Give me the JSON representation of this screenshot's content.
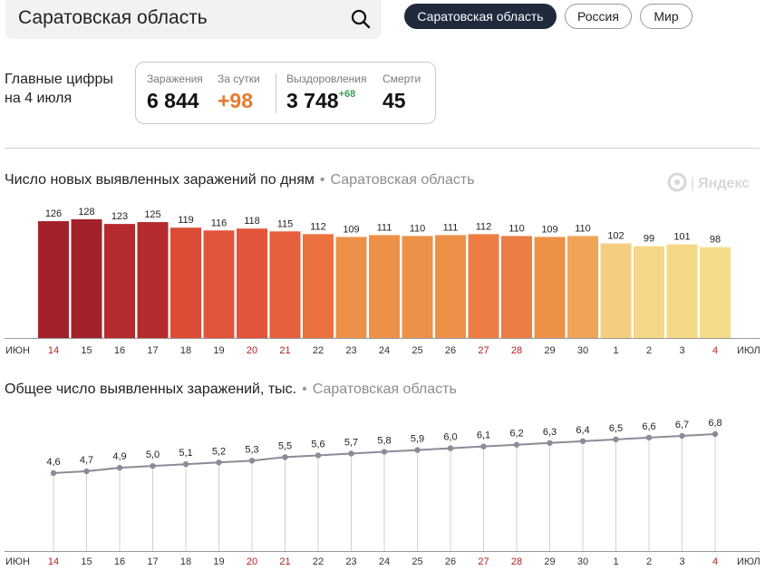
{
  "search": {
    "value": "Саратовская область"
  },
  "region_tabs": [
    {
      "label": "Саратовская область",
      "active": true
    },
    {
      "label": "Россия",
      "active": false
    },
    {
      "label": "Мир",
      "active": false
    }
  ],
  "summary": {
    "title": "Главные цифры на 4 июля",
    "infections_label": "Заражения",
    "infections_value": "6 844",
    "daily_label": "За сутки",
    "daily_value": "+98",
    "recovered_label": "Выздоровления",
    "recovered_value": "3 748",
    "recovered_delta": "+68",
    "deaths_label": "Смерти",
    "deaths_value": "45"
  },
  "watermark": {
    "text": "Яндекс"
  },
  "chart_data": [
    {
      "type": "bar",
      "title": "Число новых выявленных заражений по дням",
      "region": "Саратовская область",
      "categories": [
        "14",
        "15",
        "16",
        "17",
        "18",
        "19",
        "20",
        "21",
        "22",
        "23",
        "24",
        "25",
        "26",
        "27",
        "28",
        "29",
        "30",
        "1",
        "2",
        "3",
        "4"
      ],
      "values": [
        126,
        128,
        123,
        125,
        119,
        116,
        118,
        115,
        112,
        109,
        111,
        110,
        111,
        112,
        110,
        109,
        110,
        102,
        99,
        101,
        98
      ],
      "weekend_categories": [
        "14",
        "20",
        "21",
        "27",
        "28",
        "4"
      ],
      "month_labels": {
        "start": "ИЮН",
        "end": "ИЮЛ"
      },
      "ylim": [
        0,
        128
      ],
      "colors": [
        "#a3212b",
        "#a3212b",
        "#b52a2c",
        "#b52a2c",
        "#dc4b34",
        "#e2553a",
        "#e2553a",
        "#e85f3e",
        "#ec7141",
        "#ed9148",
        "#ed9148",
        "#ed9148",
        "#ed9148",
        "#ec7d45",
        "#ec7d45",
        "#ed9148",
        "#f0a457",
        "#f4cd80",
        "#f5d887",
        "#f5d887",
        "#f5dc8a"
      ],
      "weekend_color": "#b3211f",
      "grid": false,
      "legend": "none"
    },
    {
      "type": "line",
      "title": "Общее число выявленных заражений, тыс.",
      "region": "Саратовская область",
      "categories": [
        "14",
        "15",
        "16",
        "17",
        "18",
        "19",
        "20",
        "21",
        "22",
        "23",
        "24",
        "25",
        "26",
        "27",
        "28",
        "29",
        "30",
        "1",
        "2",
        "3",
        "4"
      ],
      "values": [
        4.6,
        4.7,
        4.9,
        5.0,
        5.1,
        5.2,
        5.3,
        5.5,
        5.6,
        5.7,
        5.8,
        5.9,
        6.0,
        6.1,
        6.2,
        6.3,
        6.4,
        6.5,
        6.6,
        6.7,
        6.8
      ],
      "labels": [
        "4,6",
        "4,7",
        "4,9",
        "5,0",
        "5,1",
        "5,2",
        "5,3",
        "5,5",
        "5,6",
        "5,7",
        "5,8",
        "5,9",
        "6,0",
        "6,1",
        "6,2",
        "6,3",
        "6,4",
        "6,5",
        "6,6",
        "6,7",
        "6,8"
      ],
      "weekend_categories": [
        "14",
        "20",
        "21",
        "27",
        "28",
        "4"
      ],
      "month_labels": {
        "start": "ИЮН",
        "end": "ИЮЛ"
      },
      "ylim": [
        0,
        7
      ],
      "line_color": "#8a8c97",
      "weekend_color": "#b3211f",
      "grid": false,
      "legend": "none"
    }
  ]
}
